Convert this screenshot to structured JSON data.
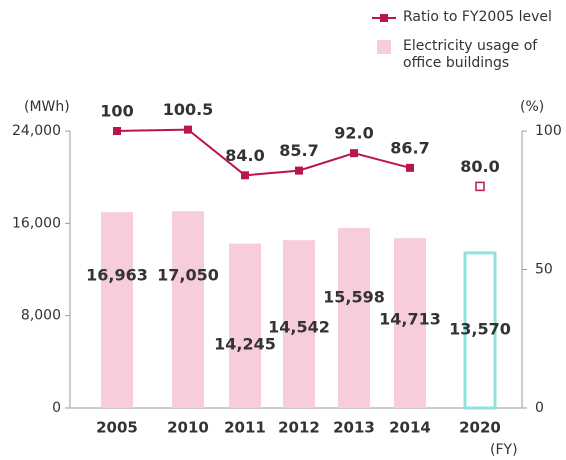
{
  "chart_data": {
    "type": "bar_line",
    "categories": [
      "2005",
      "2010",
      "2011",
      "2012",
      "2013",
      "2014",
      "2020"
    ],
    "series": [
      {
        "name": "Electricity usage of office buildings",
        "type": "bar",
        "color": "#f7cdd9",
        "values": [
          16963,
          17050,
          14245,
          14542,
          15598,
          14713,
          null
        ],
        "value_labels": [
          "16,963",
          "17,050",
          "14,245",
          "14,542",
          "15,598",
          "14,713",
          null
        ]
      },
      {
        "type": "bar",
        "color": "#8fe3df",
        "hollow": true,
        "values": [
          null,
          null,
          null,
          null,
          null,
          null,
          13570
        ],
        "value_labels": [
          null,
          null,
          null,
          null,
          null,
          null,
          "13,570"
        ]
      },
      {
        "name": "Ratio to FY2005 level",
        "type": "line",
        "axis": "y2",
        "color": "#b8164c",
        "values": [
          100,
          100.5,
          84.0,
          85.7,
          92.0,
          86.7,
          null
        ],
        "value_labels": [
          "100",
          "100.5",
          "84.0",
          "85.7",
          "92.0",
          "86.7",
          null
        ]
      },
      {
        "type": "line",
        "axis": "y2",
        "color": "#b8164c",
        "hollow": true,
        "values": [
          null,
          null,
          null,
          null,
          null,
          null,
          80.0
        ],
        "value_labels": [
          null,
          null,
          null,
          null,
          null,
          null,
          "80.0"
        ]
      }
    ],
    "y_label": "(MWh)",
    "y2_label": "(%)",
    "x_label": "(FY)",
    "ylim": [
      0,
      24000
    ],
    "yticks": [
      0,
      {
        "value": 8000,
        "label": "8,000"
      },
      {
        "value": 16000,
        "label": "16,000"
      },
      {
        "value": 24000,
        "label": "24,000"
      }
    ],
    "y2lim": [
      0,
      100
    ],
    "y2ticks": [
      0,
      50,
      100
    ]
  }
}
